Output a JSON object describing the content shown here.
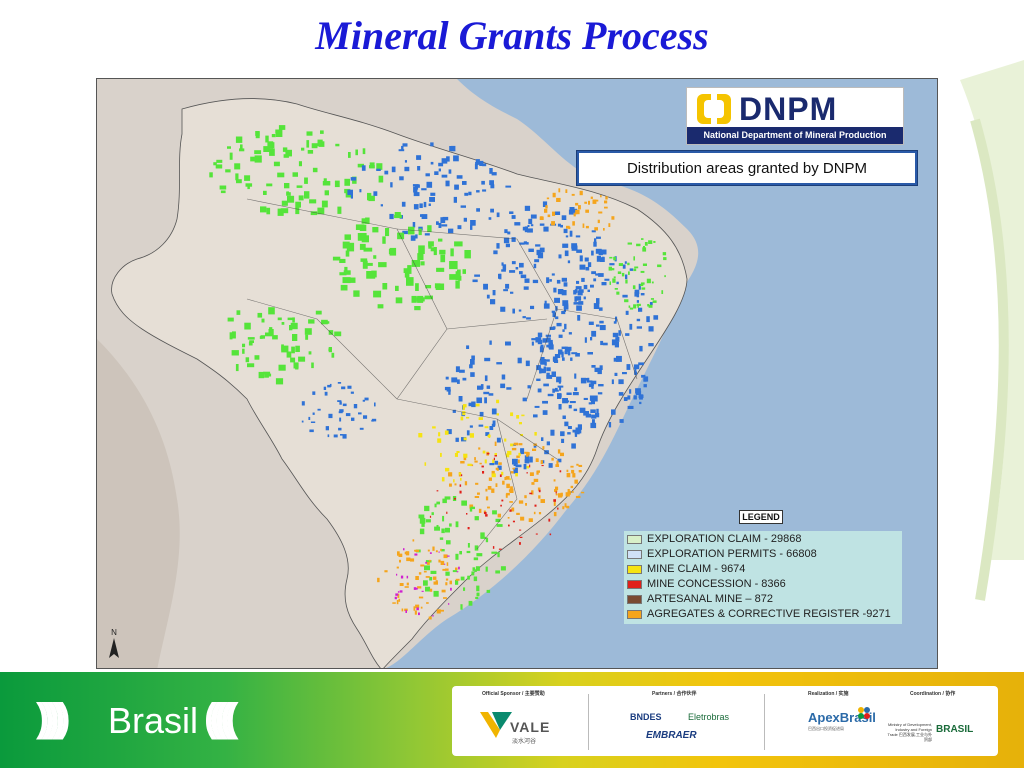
{
  "slide": {
    "title": "Mineral Grants Process"
  },
  "map": {
    "callout": "Distribution areas granted by DNPM",
    "compass_letter": "N",
    "colors": {
      "ocean": "#9dbad8",
      "land": "#d9d2cb",
      "brazil_base": "#e6dfd6",
      "exploration_claim": "#55e43a",
      "exploration_permits": "#2f72d6",
      "mine_claim": "#f6e312",
      "mine_concession": "#e0201a",
      "artesanal_mine": "#7a4a32",
      "aggregates": "#f5a51c"
    }
  },
  "dnpm_logo": {
    "wordmark": "DNPM",
    "subtitle": "National Department of Mineral Production"
  },
  "legend": {
    "title": "LEGEND",
    "items": [
      {
        "label": "EXPLORATION CLAIM - 29868",
        "color": "#d8f0c8"
      },
      {
        "label": "EXPLORATION PERMITS - 66808",
        "color": "#cfe0f6"
      },
      {
        "label": "MINE CLAIM - 9674",
        "color": "#f6e312"
      },
      {
        "label": "MINE CONCESSION - 8366",
        "color": "#e0201a"
      },
      {
        "label": "ARTESANAL MINE – 872",
        "color": "#7a4a32"
      },
      {
        "label": "AGREGATES & CORRECTIVE REGISTER -9271",
        "color": "#f5a51c"
      }
    ]
  },
  "footer": {
    "brand_left": ")))))",
    "brand_word": "Brasil",
    "brand_right": "(((((",
    "official_sponsor_heading": "Official Sponsor / 主要赞助",
    "partners_heading": "Partners / 合作伙伴",
    "realization_heading": "Realization / 实施",
    "coordination_heading": "Coordination / 协作",
    "vale_word": "VALE",
    "vale_sub": "淡水河谷",
    "bndes": "BNDES",
    "eletrobras": "Eletrobras",
    "embraer": "EMBRAER",
    "apex": "ApexBrasil",
    "apex_sub": "巴西出口投资促进局",
    "ministry": "Ministry of Development, Industry and Foreign Trade 巴西发展,工业与外贸部",
    "bric": "BRASIL"
  }
}
